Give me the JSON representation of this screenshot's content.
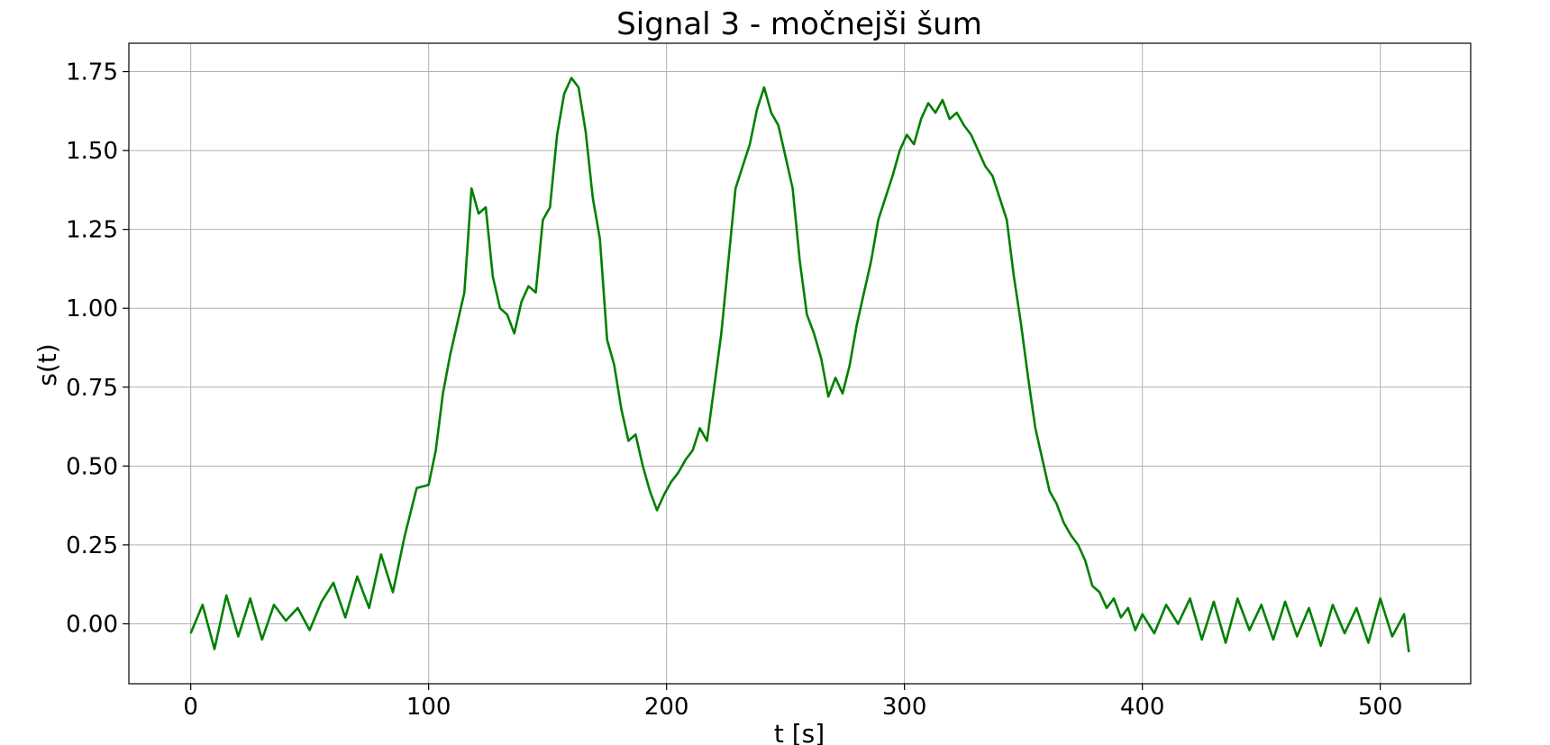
{
  "chart_data": {
    "type": "line",
    "title": "Signal 3 - močnejši šum",
    "xlabel": "t [s]",
    "ylabel": "s(t)",
    "xlim": [
      -26,
      538
    ],
    "ylim": [
      -0.19,
      1.84
    ],
    "xticks": [
      0,
      100,
      200,
      300,
      400,
      500
    ],
    "yticks": [
      0.0,
      0.25,
      0.5,
      0.75,
      1.0,
      1.25,
      1.5,
      1.75
    ],
    "xtick_labels": [
      "0",
      "100",
      "200",
      "300",
      "400",
      "500"
    ],
    "ytick_labels": [
      "0.00",
      "0.25",
      "0.50",
      "0.75",
      "1.00",
      "1.25",
      "1.50",
      "1.75"
    ],
    "grid": true,
    "series": [
      {
        "color": "#008000",
        "x": [
          0,
          5,
          10,
          15,
          20,
          25,
          30,
          35,
          40,
          45,
          50,
          55,
          60,
          65,
          70,
          75,
          80,
          85,
          90,
          95,
          100,
          103,
          106,
          109,
          112,
          115,
          118,
          121,
          124,
          127,
          130,
          133,
          136,
          139,
          142,
          145,
          148,
          151,
          154,
          157,
          160,
          163,
          166,
          169,
          172,
          175,
          178,
          181,
          184,
          187,
          190,
          193,
          196,
          199,
          202,
          205,
          208,
          211,
          214,
          217,
          220,
          223,
          226,
          229,
          232,
          235,
          238,
          241,
          244,
          247,
          250,
          253,
          256,
          259,
          262,
          265,
          268,
          271,
          274,
          277,
          280,
          283,
          286,
          289,
          292,
          295,
          298,
          301,
          304,
          307,
          310,
          313,
          316,
          319,
          322,
          325,
          328,
          331,
          334,
          337,
          340,
          343,
          346,
          349,
          352,
          355,
          358,
          361,
          364,
          367,
          370,
          373,
          376,
          379,
          382,
          385,
          388,
          391,
          394,
          397,
          400,
          405,
          410,
          415,
          420,
          425,
          430,
          435,
          440,
          445,
          450,
          455,
          460,
          465,
          470,
          475,
          480,
          485,
          490,
          495,
          500,
          505,
          510,
          512
        ],
        "y": [
          -0.03,
          0.06,
          -0.08,
          0.09,
          -0.04,
          0.08,
          -0.05,
          0.06,
          0.01,
          0.05,
          -0.02,
          0.07,
          0.13,
          0.02,
          0.15,
          0.05,
          0.22,
          0.1,
          0.28,
          0.43,
          0.44,
          0.55,
          0.73,
          0.85,
          0.95,
          1.05,
          1.38,
          1.3,
          1.32,
          1.1,
          1.0,
          0.98,
          0.92,
          1.02,
          1.07,
          1.05,
          1.28,
          1.32,
          1.55,
          1.68,
          1.73,
          1.7,
          1.56,
          1.35,
          1.22,
          0.9,
          0.82,
          0.68,
          0.58,
          0.6,
          0.5,
          0.42,
          0.36,
          0.41,
          0.45,
          0.48,
          0.52,
          0.55,
          0.62,
          0.58,
          0.75,
          0.92,
          1.15,
          1.38,
          1.45,
          1.52,
          1.63,
          1.7,
          1.62,
          1.58,
          1.48,
          1.38,
          1.15,
          0.98,
          0.92,
          0.84,
          0.72,
          0.78,
          0.73,
          0.82,
          0.95,
          1.05,
          1.15,
          1.28,
          1.35,
          1.42,
          1.5,
          1.55,
          1.52,
          1.6,
          1.65,
          1.62,
          1.66,
          1.6,
          1.62,
          1.58,
          1.55,
          1.5,
          1.45,
          1.42,
          1.35,
          1.28,
          1.1,
          0.95,
          0.78,
          0.62,
          0.52,
          0.42,
          0.38,
          0.32,
          0.28,
          0.25,
          0.2,
          0.12,
          0.1,
          0.05,
          0.08,
          0.02,
          0.05,
          -0.02,
          0.03,
          -0.03,
          0.06,
          0.0,
          0.08,
          -0.05,
          0.07,
          -0.06,
          0.08,
          -0.02,
          0.06,
          -0.05,
          0.07,
          -0.04,
          0.05,
          -0.07,
          0.06,
          -0.03,
          0.05,
          -0.06,
          0.08,
          -0.04,
          0.03,
          -0.09
        ]
      }
    ]
  }
}
